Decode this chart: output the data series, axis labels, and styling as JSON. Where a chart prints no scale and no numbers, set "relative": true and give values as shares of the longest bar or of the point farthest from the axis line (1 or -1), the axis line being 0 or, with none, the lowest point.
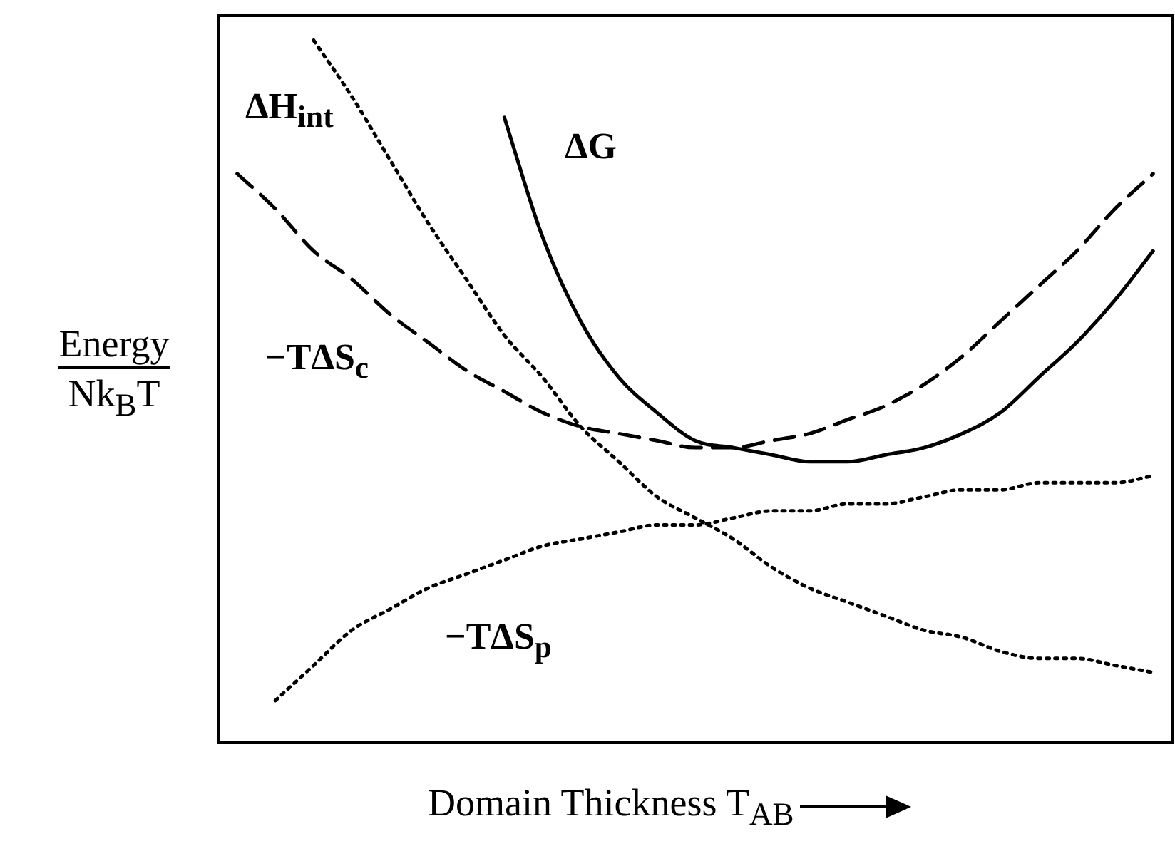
{
  "chart_data": {
    "type": "line",
    "relative": true,
    "ylabel": "Energy\nNk$_{B}$T",
    "xlabel": "Domain Thickness T$_{AB}$",
    "categories": [
      null,
      null,
      null,
      null,
      null,
      null,
      null,
      null,
      null,
      null,
      null,
      null,
      null,
      null,
      null,
      null,
      null,
      null,
      null,
      null,
      null,
      null,
      null,
      null,
      null
    ],
    "series": [
      {
        "name": "ΔH$_{int}$",
        "color": "#000000",
        "line_style": "dotted",
        "values": [
          null,
          null,
          1.0,
          0.92,
          0.83,
          0.74,
          0.66,
          0.58,
          0.52,
          0.45,
          0.4,
          0.35,
          0.32,
          0.29,
          0.25,
          0.22,
          0.2,
          0.18,
          0.16,
          0.15,
          0.13,
          0.12,
          0.12,
          0.11,
          0.1
        ]
      },
      {
        "name": "ΔG",
        "color": "#000000",
        "line_style": "solid",
        "values": [
          null,
          null,
          null,
          null,
          null,
          null,
          null,
          0.89,
          0.72,
          0.6,
          0.52,
          0.47,
          0.43,
          0.42,
          0.41,
          0.4,
          0.4,
          0.41,
          0.42,
          0.44,
          0.47,
          0.52,
          0.57,
          0.63,
          0.7
        ]
      },
      {
        "name": "−TΔS$_{c}$",
        "color": "#000000",
        "line_style": "dashed",
        "values": [
          0.81,
          0.76,
          0.7,
          0.66,
          0.61,
          0.57,
          0.53,
          0.5,
          0.47,
          0.45,
          0.44,
          0.43,
          0.42,
          0.42,
          0.43,
          0.44,
          0.46,
          0.48,
          0.51,
          0.55,
          0.6,
          0.65,
          0.7,
          0.76,
          0.81
        ]
      },
      {
        "name": "−TΔS$_{p}$",
        "color": "#000000",
        "line_style": "dotted",
        "values": [
          null,
          0.06,
          0.11,
          0.16,
          0.19,
          0.22,
          0.24,
          0.26,
          0.28,
          0.29,
          0.3,
          0.31,
          0.31,
          0.32,
          0.33,
          0.33,
          0.34,
          0.34,
          0.35,
          0.36,
          0.36,
          0.37,
          0.37,
          0.37,
          0.38
        ]
      }
    ],
    "legend": false,
    "marker": "none"
  }
}
